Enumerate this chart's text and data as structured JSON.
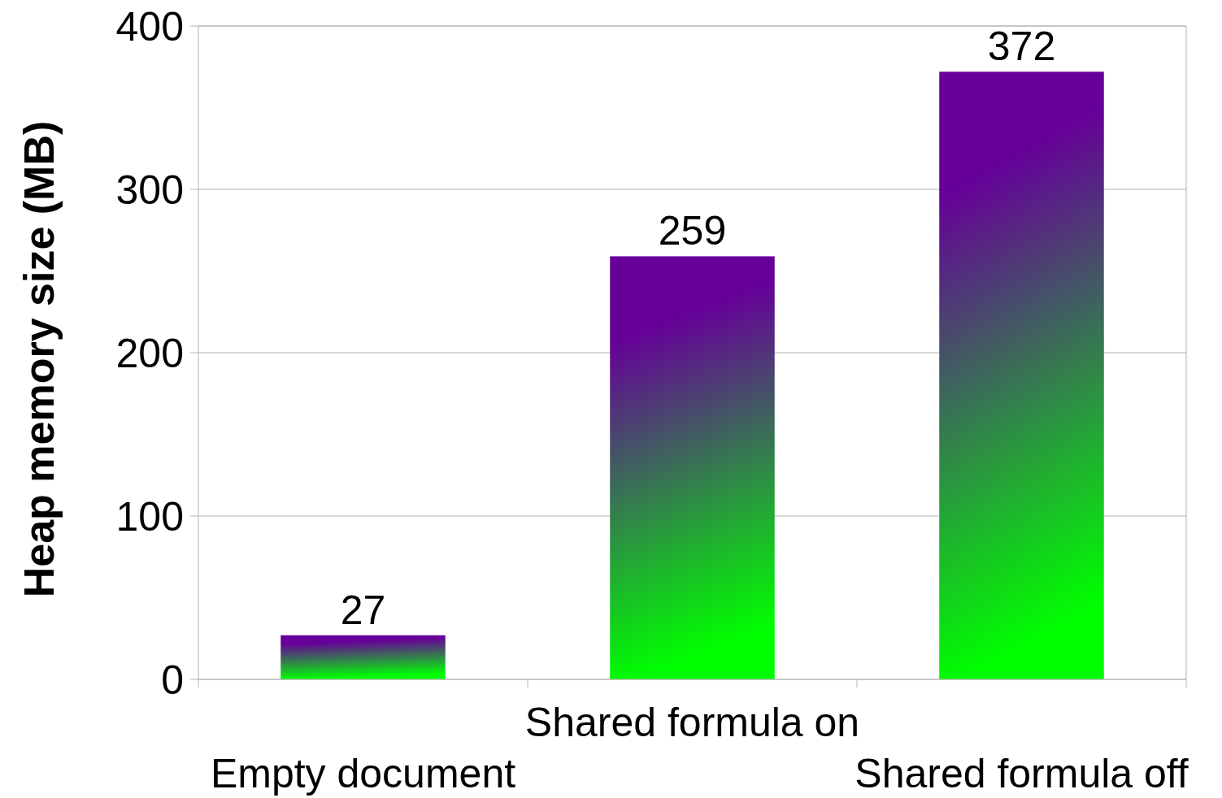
{
  "chart_data": {
    "type": "bar",
    "ylabel": "Heap memory size (MB)",
    "categories": [
      "Empty document",
      "Shared formula on",
      "Shared formula off"
    ],
    "values": [
      27,
      259,
      372
    ],
    "color": "#660099",
    "ylim": [
      0,
      400
    ],
    "yticks": [
      0,
      100,
      200,
      300,
      400
    ],
    "grid": "y",
    "data_labels": true
  }
}
